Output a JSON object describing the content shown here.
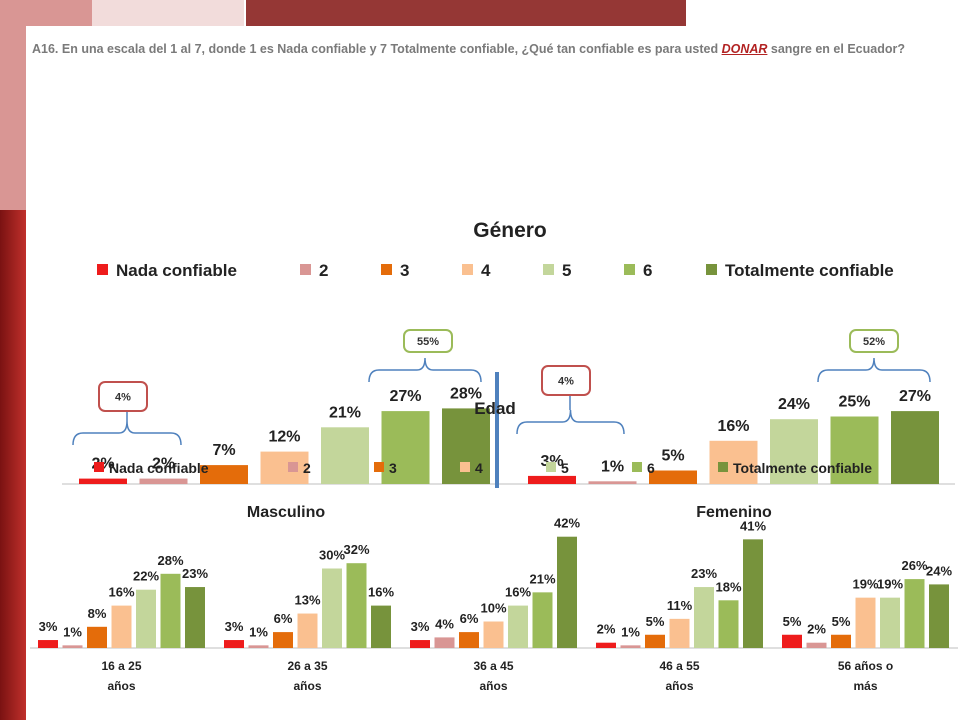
{
  "question": {
    "prefix": "A16. En una escala del 1 al 7, donde 1 es Nada confiable y 7 Totalmente confiable, ¿Qué tan confiable es para usted ",
    "highlight": "DONAR",
    "suffix": " sangre en el Ecuador?"
  },
  "colors": {
    "Nada confiable": "#ee1c1c",
    "2": "#d99694",
    "3": "#e46c0a",
    "4": "#fac090",
    "5": "#c3d69b",
    "6": "#9bbb59",
    "Totalmente confiable": "#77933c"
  },
  "chart_data": [
    {
      "type": "bar",
      "title": "Género",
      "legend": [
        "Nada confiable",
        "2",
        "3",
        "4",
        "5",
        "6",
        "Totalmente confiable"
      ],
      "legend_position": "top",
      "categories": [
        "Masculino",
        "Femenino"
      ],
      "series": [
        {
          "name": "Nada confiable",
          "values": [
            2,
            3
          ]
        },
        {
          "name": "2",
          "values": [
            2,
            1
          ]
        },
        {
          "name": "3",
          "values": [
            7,
            5
          ]
        },
        {
          "name": "4",
          "values": [
            12,
            16
          ]
        },
        {
          "name": "5",
          "values": [
            21,
            24
          ]
        },
        {
          "name": "6",
          "values": [
            27,
            25
          ]
        },
        {
          "name": "Totalmente confiable",
          "values": [
            28,
            27
          ]
        }
      ],
      "annotations": [
        {
          "category": "Masculino",
          "group": "low",
          "label": "4%"
        },
        {
          "category": "Masculino",
          "group": "high",
          "label": "55%"
        },
        {
          "category": "Femenino",
          "group": "low",
          "label": "4%"
        },
        {
          "category": "Femenino",
          "group": "high",
          "label": "52%"
        }
      ],
      "value_suffix": "%",
      "grid": false
    },
    {
      "type": "bar",
      "title": "Edad",
      "legend": [
        "Nada confiable",
        "2",
        "3",
        "4",
        "5",
        "6",
        "Totalmente confiable"
      ],
      "legend_position": "top",
      "categories": [
        "16 a 25 años",
        "26 a 35 años",
        "36 a 45 años",
        "46 a 55 años",
        "56 años o más"
      ],
      "series": [
        {
          "name": "Nada confiable",
          "values": [
            3,
            3,
            3,
            2,
            5
          ]
        },
        {
          "name": "2",
          "values": [
            1,
            1,
            4,
            1,
            2
          ]
        },
        {
          "name": "3",
          "values": [
            8,
            6,
            6,
            5,
            5
          ]
        },
        {
          "name": "4",
          "values": [
            16,
            13,
            10,
            11,
            19
          ]
        },
        {
          "name": "5",
          "values": [
            22,
            30,
            16,
            23,
            19
          ]
        },
        {
          "name": "6",
          "values": [
            28,
            32,
            21,
            18,
            26
          ]
        },
        {
          "name": "Totalmente confiable",
          "values": [
            23,
            16,
            42,
            41,
            24
          ]
        }
      ],
      "value_suffix": "%",
      "grid": false
    }
  ]
}
